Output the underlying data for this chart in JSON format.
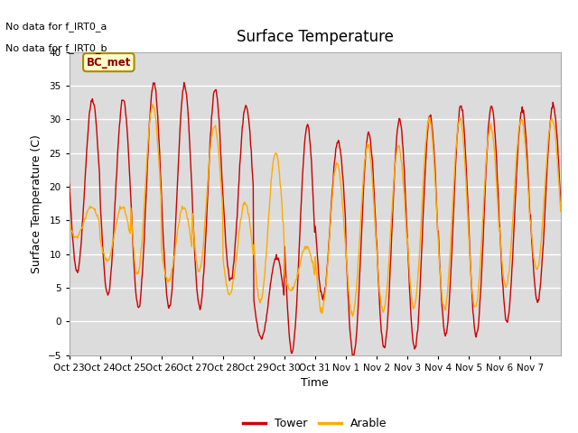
{
  "title": "Surface Temperature",
  "xlabel": "Time",
  "ylabel": "Surface Temperature (C)",
  "ylim": [
    -5,
    40
  ],
  "fig_bg_color": "#ffffff",
  "plot_bg_color": "#dcdcdc",
  "tower_color": "#cc0000",
  "arable_color": "#ffaa00",
  "annotation_line1": "No data for f_IRT0_a",
  "annotation_line2": "No data for f_IRT0_b",
  "legend_box_label": "BC_met",
  "legend_box_color": "#ffffcc",
  "legend_box_edge": "#aa8800",
  "xtick_labels": [
    "Oct 23",
    "Oct 24",
    "Oct 25",
    "Oct 26",
    "Oct 27",
    "Oct 28",
    "Oct 29",
    "Oct 30",
    "Oct 31",
    "Nov 1",
    "Nov 2",
    "Nov 3",
    "Nov 4",
    "Nov 5",
    "Nov 6",
    "Nov 7"
  ],
  "ytick_values": [
    -5,
    0,
    5,
    10,
    15,
    20,
    25,
    30,
    35,
    40
  ],
  "n_days": 16,
  "tower_daily_max": [
    33,
    33,
    35.5,
    35,
    34.5,
    32,
    9.5,
    29,
    26.5,
    28,
    30,
    30.5,
    32,
    32,
    31.5,
    32
  ],
  "tower_daily_min": [
    7.5,
    4,
    2,
    2,
    2,
    6,
    -2.5,
    -4.5,
    3.5,
    -5,
    -4,
    -4,
    -2,
    -2,
    0,
    3
  ],
  "arable_daily_max": [
    17,
    17,
    32,
    17,
    29,
    17.5,
    25,
    11,
    23.5,
    26,
    26,
    30,
    30,
    29,
    30,
    30
  ],
  "arable_daily_min": [
    12.5,
    9,
    7,
    6,
    7.5,
    4,
    3,
    4.5,
    1.5,
    1,
    1.5,
    2,
    2,
    2,
    5,
    7.5
  ]
}
